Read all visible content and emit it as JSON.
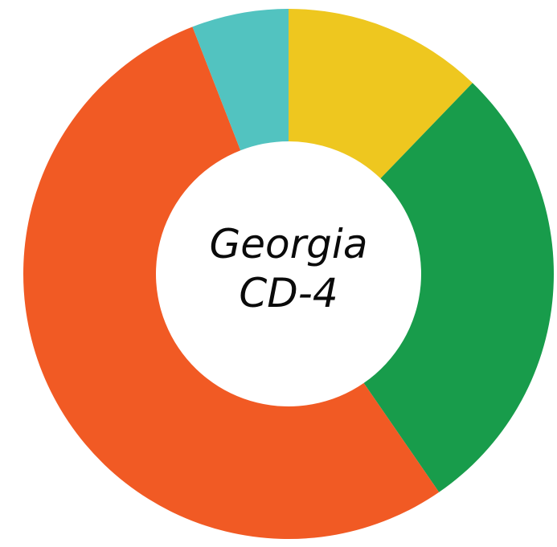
{
  "chart_data": {
    "type": "pie",
    "donut": true,
    "title_lines": [
      "Georgia",
      "CD-4"
    ],
    "slices": [
      {
        "value": 12.2,
        "color": "#EEC71F"
      },
      {
        "value": 28.2,
        "color": "#189C4B"
      },
      {
        "value": 53.7,
        "color": "#F15A24"
      },
      {
        "value": 5.9,
        "color": "#52C3C0"
      }
    ],
    "start_angle_deg": 0,
    "direction": "clockwise"
  }
}
